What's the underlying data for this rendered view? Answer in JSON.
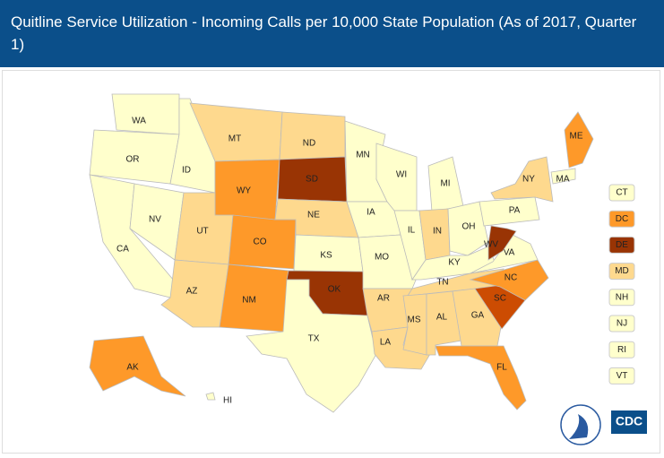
{
  "title": "Quitline Service Utilization - Incoming Calls per 10,000 State Population (As of 2017, Quarter 1)",
  "states": [
    {
      "label": "WA",
      "color": "#ffffcc"
    },
    {
      "label": "OR",
      "color": "#ffffcc"
    },
    {
      "label": "CA",
      "color": "#ffffcc"
    },
    {
      "label": "NV",
      "color": "#ffffcc"
    },
    {
      "label": "ID",
      "color": "#ffffcc"
    },
    {
      "label": "MT",
      "color": "#fed98e"
    },
    {
      "label": "WY",
      "color": "#fe9929"
    },
    {
      "label": "UT",
      "color": "#fed98e"
    },
    {
      "label": "AZ",
      "color": "#fed98e"
    },
    {
      "label": "CO",
      "color": "#fe9929"
    },
    {
      "label": "NM",
      "color": "#fe9929"
    },
    {
      "label": "ND",
      "color": "#fed98e"
    },
    {
      "label": "SD",
      "color": "#993404"
    },
    {
      "label": "NE",
      "color": "#fed98e"
    },
    {
      "label": "KS",
      "color": "#ffffcc"
    },
    {
      "label": "OK",
      "color": "#993404"
    },
    {
      "label": "TX",
      "color": "#ffffcc"
    },
    {
      "label": "MN",
      "color": "#ffffcc"
    },
    {
      "label": "IA",
      "color": "#ffffcc"
    },
    {
      "label": "MO",
      "color": "#ffffcc"
    },
    {
      "label": "AR",
      "color": "#fed98e"
    },
    {
      "label": "LA",
      "color": "#fed98e"
    },
    {
      "label": "WI",
      "color": "#ffffcc"
    },
    {
      "label": "IL",
      "color": "#ffffcc"
    },
    {
      "label": "MI",
      "color": "#ffffcc"
    },
    {
      "label": "IN",
      "color": "#fed98e"
    },
    {
      "label": "OH",
      "color": "#ffffcc"
    },
    {
      "label": "KY",
      "color": "#ffffcc"
    },
    {
      "label": "TN",
      "color": "#fed98e"
    },
    {
      "label": "MS",
      "color": "#fed98e"
    },
    {
      "label": "AL",
      "color": "#fed98e"
    },
    {
      "label": "GA",
      "color": "#fed98e"
    },
    {
      "label": "FL",
      "color": "#fe9929"
    },
    {
      "label": "SC",
      "color": "#cc4c02"
    },
    {
      "label": "NC",
      "color": "#fe9929"
    },
    {
      "label": "VA",
      "color": "#ffffcc"
    },
    {
      "label": "WV",
      "color": "#993404"
    },
    {
      "label": "PA",
      "color": "#ffffcc"
    },
    {
      "label": "NY",
      "color": "#fed98e"
    },
    {
      "label": "ME",
      "color": "#fe9929"
    },
    {
      "label": "MA",
      "color": "#ffffcc"
    },
    {
      "label": "AK",
      "color": "#fe9929"
    },
    {
      "label": "HI",
      "color": "#ffffcc"
    }
  ],
  "small_states": [
    {
      "label": "CT",
      "color": "#ffffcc"
    },
    {
      "label": "DC",
      "color": "#fe9929"
    },
    {
      "label": "DE",
      "color": "#993404"
    },
    {
      "label": "MD",
      "color": "#fed98e"
    },
    {
      "label": "NH",
      "color": "#ffffcc"
    },
    {
      "label": "NJ",
      "color": "#ffffcc"
    },
    {
      "label": "RI",
      "color": "#ffffcc"
    },
    {
      "label": "VT",
      "color": "#ffffcc"
    }
  ],
  "logo_text": "CDC"
}
